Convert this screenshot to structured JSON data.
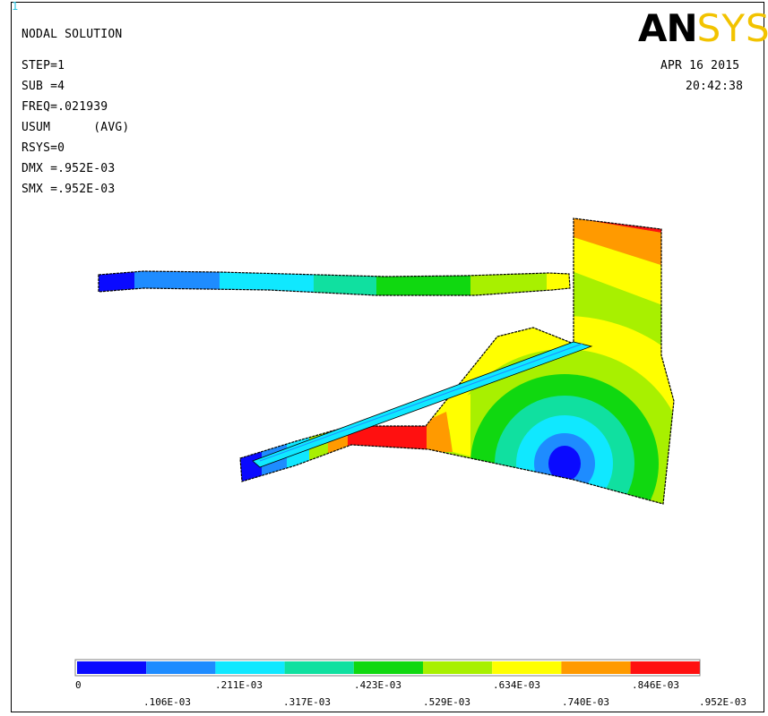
{
  "window": {
    "number": "1"
  },
  "brand": {
    "logo_text_a": "AN",
    "logo_text_b": "SYS"
  },
  "info": {
    "title": "NODAL SOLUTION",
    "step": "STEP=1",
    "sub": "SUB =4",
    "freq": "FREQ=.021939",
    "usum": "USUM      (AVG)",
    "rsys": "RSYS=0",
    "dmx": "DMX =.952E-03",
    "smx": "SMX =.952E-03"
  },
  "datetime": {
    "date": "APR 16 2015",
    "time": "20:42:38"
  },
  "legend": {
    "colors": [
      "#0a0aff",
      "#1e8cff",
      "#10e8ff",
      "#10e0a0",
      "#10d810",
      "#a8f000",
      "#ffff00",
      "#ff9a00",
      "#ff1010"
    ],
    "labels_top": [
      "0",
      ".211E-03",
      ".423E-03",
      ".634E-03",
      ".846E-03"
    ],
    "labels_bottom": [
      ".106E-03",
      ".317E-03",
      ".529E-03",
      ".740E-03",
      ".952E-03"
    ]
  }
}
